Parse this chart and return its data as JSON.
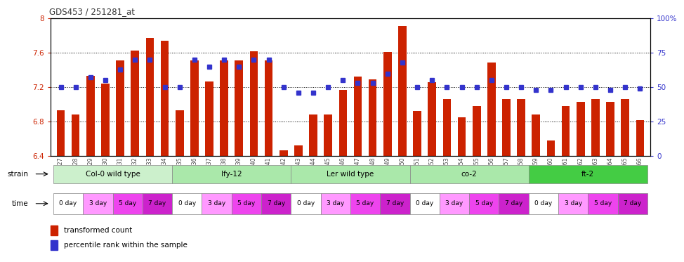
{
  "title": "GDS453 / 251281_at",
  "samples": [
    "GSM8827",
    "GSM8828",
    "GSM8829",
    "GSM8830",
    "GSM8831",
    "GSM8832",
    "GSM8833",
    "GSM8834",
    "GSM8835",
    "GSM8836",
    "GSM8837",
    "GSM8838",
    "GSM8839",
    "GSM8840",
    "GSM8841",
    "GSM8842",
    "GSM8843",
    "GSM8844",
    "GSM8845",
    "GSM8846",
    "GSM8847",
    "GSM8848",
    "GSM8849",
    "GSM8850",
    "GSM8851",
    "GSM8852",
    "GSM8853",
    "GSM8854",
    "GSM8855",
    "GSM8856",
    "GSM8857",
    "GSM8858",
    "GSM8859",
    "GSM8860",
    "GSM8861",
    "GSM8862",
    "GSM8863",
    "GSM8864",
    "GSM8865",
    "GSM8866"
  ],
  "bar_values": [
    6.93,
    6.88,
    7.33,
    7.24,
    7.51,
    7.63,
    7.77,
    7.74,
    6.93,
    7.51,
    7.27,
    7.51,
    7.51,
    7.62,
    7.51,
    6.47,
    6.52,
    6.88,
    6.88,
    7.17,
    7.32,
    7.29,
    7.61,
    7.91,
    6.92,
    7.26,
    7.06,
    6.85,
    6.98,
    7.49,
    7.06,
    7.06,
    6.88,
    6.58,
    6.98,
    7.03,
    7.06,
    7.03,
    7.06,
    6.82
  ],
  "percentile_values": [
    50,
    50,
    57,
    55,
    63,
    70,
    70,
    50,
    50,
    70,
    65,
    70,
    65,
    70,
    70,
    50,
    46,
    46,
    50,
    55,
    53,
    53,
    60,
    68,
    50,
    55,
    50,
    50,
    50,
    55,
    50,
    50,
    48,
    48,
    50,
    50,
    50,
    48,
    50,
    49
  ],
  "ylim": [
    6.4,
    8.0
  ],
  "yticks": [
    6.4,
    6.8,
    7.2,
    7.6,
    8.0
  ],
  "right_yticks": [
    0,
    25,
    50,
    75,
    100
  ],
  "right_ylabels": [
    "0",
    "25",
    "50",
    "75",
    "100%"
  ],
  "bar_color": "#CC2200",
  "dot_color": "#3333CC",
  "strains": [
    "Col-0 wild type",
    "lfy-12",
    "Ler wild type",
    "co-2",
    "ft-2"
  ],
  "strain_starts": [
    0,
    8,
    16,
    24,
    32
  ],
  "strain_ends": [
    8,
    16,
    24,
    32,
    40
  ],
  "strain_colors": [
    "#ccf0cc",
    "#aae8aa",
    "#aae8aa",
    "#aae8aa",
    "#44cc44"
  ],
  "time_labels": [
    "0 day",
    "3 day",
    "5 day",
    "7 day"
  ],
  "time_colors": [
    "#ffffff",
    "#ff99ff",
    "#ee44ee",
    "#cc22cc"
  ],
  "legend_bar_color": "#CC2200",
  "legend_dot_color": "#3333CC"
}
